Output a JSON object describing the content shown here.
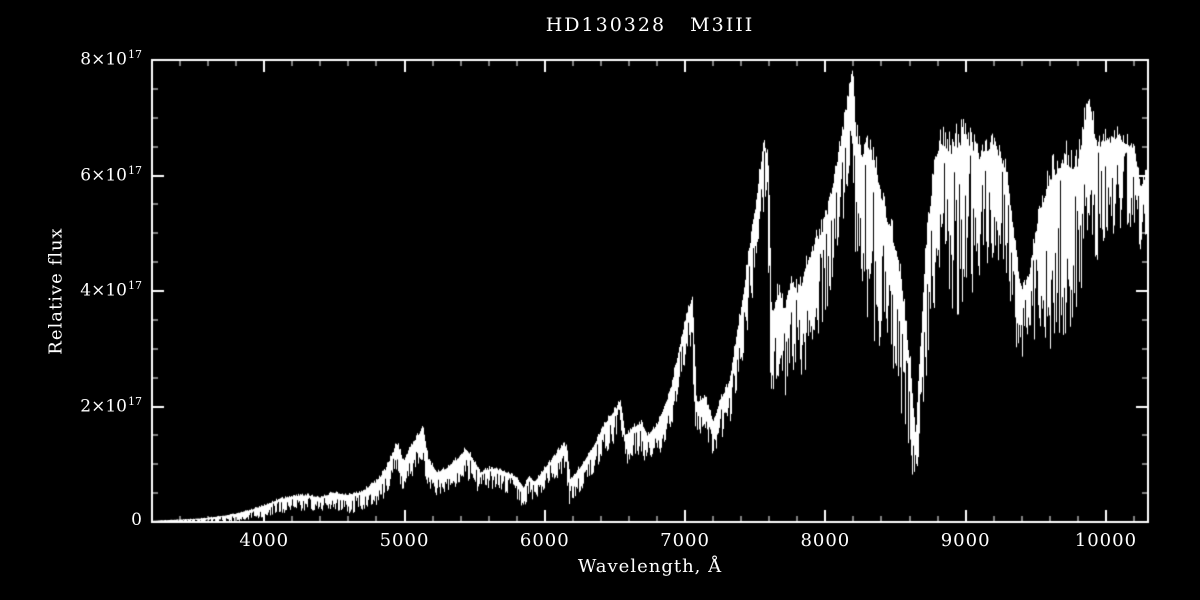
{
  "chart_data": {
    "type": "line",
    "title": "HD130328   M3III",
    "xlabel": "Wavelength, Å",
    "ylabel": "Relative flux",
    "xlim": [
      3200,
      10300
    ],
    "ylim": [
      0,
      8e+17
    ],
    "ylim_e17": [
      0,
      8
    ],
    "y_exponent": 17,
    "grid": false,
    "background_color": "#000000",
    "axis_color": "#ffffff",
    "xticks": [
      {
        "v": 4000,
        "label": "4000"
      },
      {
        "v": 5000,
        "label": "5000"
      },
      {
        "v": 6000,
        "label": "6000"
      },
      {
        "v": 7000,
        "label": "7000"
      },
      {
        "v": 8000,
        "label": "8000"
      },
      {
        "v": 9000,
        "label": "9000"
      },
      {
        "v": 10000,
        "label": "10000"
      }
    ],
    "x_minor_step": 200,
    "yticks": [
      {
        "v": 0,
        "label": "0"
      },
      {
        "v": 2,
        "label": "2×10^17"
      },
      {
        "v": 4,
        "label": "4×10^17"
      },
      {
        "v": 6,
        "label": "6×10^17"
      },
      {
        "v": 8,
        "label": "8×10^17"
      }
    ],
    "y_minor_step_e17": 0.5,
    "series": [
      {
        "name": "HD130328 spectrum",
        "color": "#ffffff",
        "columns": [
          "wavelength_A",
          "flux_e17",
          "noise_halfdepth_e17"
        ],
        "points": [
          [
            3200,
            0.02,
            0.02
          ],
          [
            3300,
            0.03,
            0.03
          ],
          [
            3400,
            0.04,
            0.04
          ],
          [
            3500,
            0.05,
            0.05
          ],
          [
            3600,
            0.07,
            0.06
          ],
          [
            3700,
            0.1,
            0.08
          ],
          [
            3800,
            0.14,
            0.1
          ],
          [
            3900,
            0.2,
            0.12
          ],
          [
            4000,
            0.28,
            0.15
          ],
          [
            4100,
            0.38,
            0.18
          ],
          [
            4200,
            0.44,
            0.2
          ],
          [
            4300,
            0.46,
            0.2
          ],
          [
            4400,
            0.42,
            0.2
          ],
          [
            4500,
            0.5,
            0.24
          ],
          [
            4600,
            0.46,
            0.24
          ],
          [
            4700,
            0.52,
            0.26
          ],
          [
            4800,
            0.68,
            0.3
          ],
          [
            4870,
            0.9,
            0.34
          ],
          [
            4950,
            1.35,
            0.4
          ],
          [
            4990,
            1.0,
            0.34
          ],
          [
            5050,
            1.3,
            0.4
          ],
          [
            5130,
            1.6,
            0.44
          ],
          [
            5170,
            1.05,
            0.35
          ],
          [
            5230,
            0.85,
            0.3
          ],
          [
            5300,
            0.92,
            0.3
          ],
          [
            5380,
            1.08,
            0.34
          ],
          [
            5440,
            1.25,
            0.38
          ],
          [
            5490,
            1.05,
            0.34
          ],
          [
            5540,
            0.85,
            0.3
          ],
          [
            5620,
            0.92,
            0.3
          ],
          [
            5700,
            0.88,
            0.28
          ],
          [
            5790,
            0.78,
            0.28
          ],
          [
            5850,
            0.55,
            0.24
          ],
          [
            5885,
            0.78,
            0.26
          ],
          [
            5930,
            0.68,
            0.26
          ],
          [
            5990,
            0.88,
            0.3
          ],
          [
            6060,
            1.08,
            0.32
          ],
          [
            6130,
            1.32,
            0.34
          ],
          [
            6155,
            1.3,
            0.34
          ],
          [
            6180,
            0.7,
            0.3
          ],
          [
            6260,
            0.95,
            0.32
          ],
          [
            6350,
            1.3,
            0.34
          ],
          [
            6450,
            1.75,
            0.4
          ],
          [
            6540,
            2.05,
            0.44
          ],
          [
            6575,
            1.45,
            0.4
          ],
          [
            6630,
            1.62,
            0.4
          ],
          [
            6690,
            1.7,
            0.4
          ],
          [
            6730,
            1.48,
            0.4
          ],
          [
            6800,
            1.65,
            0.44
          ],
          [
            6900,
            2.25,
            0.5
          ],
          [
            6990,
            3.3,
            0.55
          ],
          [
            7050,
            3.85,
            0.55
          ],
          [
            7080,
            2.05,
            0.5
          ],
          [
            7140,
            2.15,
            0.5
          ],
          [
            7200,
            1.7,
            0.45
          ],
          [
            7260,
            2.1,
            0.5
          ],
          [
            7320,
            2.4,
            0.55
          ],
          [
            7400,
            3.6,
            0.7
          ],
          [
            7500,
            5.3,
            0.9
          ],
          [
            7565,
            6.55,
            0.8
          ],
          [
            7595,
            6.1,
            1.2
          ],
          [
            7615,
            3.4,
            1.0
          ],
          [
            7665,
            3.95,
            1.1
          ],
          [
            7710,
            3.6,
            1.1
          ],
          [
            7760,
            4.15,
            1.2
          ],
          [
            7810,
            3.9,
            1.2
          ],
          [
            7900,
            4.6,
            1.3
          ],
          [
            8000,
            5.1,
            1.3
          ],
          [
            8100,
            6.3,
            1.2
          ],
          [
            8160,
            7.2,
            1.0
          ],
          [
            8195,
            7.8,
            0.9
          ],
          [
            8215,
            6.7,
            1.6
          ],
          [
            8260,
            6.3,
            2.2
          ],
          [
            8310,
            6.45,
            2.3
          ],
          [
            8360,
            5.95,
            2.2
          ],
          [
            8410,
            5.45,
            2.0
          ],
          [
            8460,
            5.0,
            1.8
          ],
          [
            8510,
            4.6,
            1.7
          ],
          [
            8550,
            3.9,
            1.6
          ],
          [
            8605,
            2.6,
            1.2
          ],
          [
            8645,
            1.3,
            0.4
          ],
          [
            8685,
            3.1,
            1.0
          ],
          [
            8720,
            4.6,
            1.5
          ],
          [
            8770,
            5.9,
            1.8
          ],
          [
            8820,
            6.55,
            1.6
          ],
          [
            8900,
            6.35,
            2.4
          ],
          [
            9000,
            6.6,
            2.2
          ],
          [
            9100,
            6.25,
            1.6
          ],
          [
            9200,
            6.5,
            1.5
          ],
          [
            9290,
            6.05,
            1.4
          ],
          [
            9350,
            4.7,
            1.2
          ],
          [
            9400,
            3.9,
            0.9
          ],
          [
            9460,
            4.3,
            1.0
          ],
          [
            9520,
            5.2,
            1.6
          ],
          [
            9600,
            5.85,
            2.2
          ],
          [
            9700,
            6.2,
            2.4
          ],
          [
            9800,
            6.05,
            2.0
          ],
          [
            9880,
            7.3,
            1.5
          ],
          [
            9930,
            6.45,
            1.5
          ],
          [
            10000,
            6.55,
            1.4
          ],
          [
            10100,
            6.6,
            1.3
          ],
          [
            10200,
            6.45,
            1.2
          ],
          [
            10250,
            5.7,
            1.0
          ],
          [
            10300,
            6.0,
            1.0
          ]
        ]
      }
    ]
  }
}
